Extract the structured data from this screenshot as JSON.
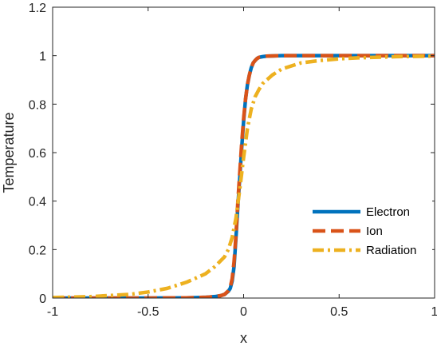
{
  "chart_data": {
    "type": "line",
    "title": "",
    "xlabel": "x",
    "ylabel": "Temperature",
    "xlim": [
      -1,
      1
    ],
    "ylim": [
      0,
      1.2
    ],
    "xticks": [
      -1,
      -0.5,
      0,
      0.5,
      1
    ],
    "xtick_labels": [
      "-1",
      "-0.5",
      "0",
      "0.5",
      "1"
    ],
    "yticks": [
      0,
      0.2,
      0.4,
      0.6,
      0.8,
      1,
      1.2
    ],
    "ytick_labels": [
      "0",
      "0.2",
      "0.4",
      "0.6",
      "0.8",
      "1",
      "1.2"
    ],
    "grid": false,
    "legend_position": "lower-right",
    "series": [
      {
        "name": "Electron",
        "color": "#0072bd",
        "style": "solid",
        "x": [
          -1,
          -0.5,
          -0.3,
          -0.2,
          -0.15,
          -0.12,
          -0.1,
          -0.08,
          -0.07,
          -0.06,
          -0.05,
          -0.04,
          -0.03,
          -0.02,
          -0.01,
          0,
          0.01,
          0.02,
          0.03,
          0.04,
          0.05,
          0.06,
          0.07,
          0.08,
          0.1,
          0.12,
          0.15,
          0.2,
          0.3,
          0.5,
          1
        ],
        "y": [
          0,
          0,
          0.001,
          0.003,
          0.006,
          0.01,
          0.015,
          0.028,
          0.04,
          0.07,
          0.13,
          0.25,
          0.38,
          0.5,
          0.62,
          0.73,
          0.82,
          0.88,
          0.92,
          0.95,
          0.97,
          0.98,
          0.988,
          0.993,
          0.996,
          0.998,
          0.999,
          1,
          1,
          1,
          1
        ]
      },
      {
        "name": "Ion",
        "color": "#d95319",
        "style": "dashed",
        "x": [
          -1,
          -0.5,
          -0.3,
          -0.2,
          -0.15,
          -0.12,
          -0.1,
          -0.08,
          -0.07,
          -0.06,
          -0.05,
          -0.04,
          -0.03,
          -0.02,
          -0.01,
          0,
          0.01,
          0.02,
          0.03,
          0.04,
          0.05,
          0.06,
          0.07,
          0.08,
          0.1,
          0.12,
          0.15,
          0.2,
          0.3,
          0.5,
          1
        ],
        "y": [
          0,
          0,
          0.001,
          0.003,
          0.006,
          0.01,
          0.015,
          0.03,
          0.045,
          0.08,
          0.15,
          0.26,
          0.4,
          0.52,
          0.64,
          0.74,
          0.82,
          0.88,
          0.92,
          0.95,
          0.97,
          0.98,
          0.988,
          0.993,
          0.996,
          0.998,
          0.999,
          1,
          1,
          1,
          1
        ]
      },
      {
        "name": "Radiation",
        "color": "#edb120",
        "style": "dashdot",
        "x": [
          -1,
          -0.8,
          -0.6,
          -0.5,
          -0.4,
          -0.3,
          -0.2,
          -0.15,
          -0.1,
          -0.08,
          -0.06,
          -0.04,
          -0.02,
          0,
          0.02,
          0.04,
          0.06,
          0.08,
          0.1,
          0.15,
          0.2,
          0.3,
          0.4,
          0.5,
          0.6,
          0.8,
          1
        ],
        "y": [
          0.002,
          0.006,
          0.015,
          0.025,
          0.04,
          0.065,
          0.1,
          0.13,
          0.17,
          0.2,
          0.25,
          0.33,
          0.45,
          0.58,
          0.7,
          0.78,
          0.83,
          0.86,
          0.885,
          0.92,
          0.945,
          0.97,
          0.98,
          0.987,
          0.991,
          0.996,
          0.998
        ]
      }
    ]
  }
}
